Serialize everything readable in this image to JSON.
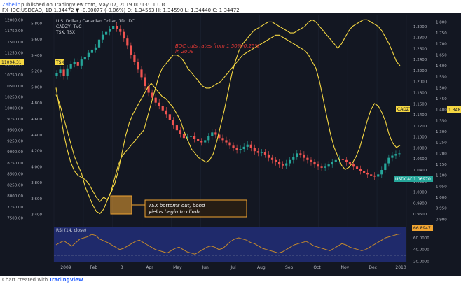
{
  "header": {
    "author": "Zabelin1",
    "published": "published on TradingView.com, May 07, 2019 00:13:11 UTC",
    "symbol_line": {
      "symbol": "FX_IDC:USDCAD, 1D",
      "values": "1.34472 ▼ -0.00077 (-0.06%) O: 1.34553 H: 1.34590 L: 1.34440 C: 1.34472"
    }
  },
  "legend": {
    "line1": "U.S. Dollar / Canadian Dollar, 1D, IDC",
    "line2": "CADZY, TVC",
    "line3": "TSX, TSX"
  },
  "annotations": {
    "boc": "BOC cuts rates from 1.50%-0.25%\nin 2009",
    "tsx": "TSX bottoms out, bond\nyields begin to climb"
  },
  "rsi": {
    "label": "RSI (14, close)",
    "value_badge": "66.8947",
    "levels": [
      "60.0000",
      "40.0000",
      "20.0000"
    ]
  },
  "badges": {
    "tsx_left": "11094.31",
    "tsx_tag": "TSX",
    "cadzy_tag": "CADZY",
    "cadzy_value": "1.348",
    "usdcad_tag": "USDCAD",
    "usdcad_value": "1.06970"
  },
  "footer": {
    "left": "Chart created with",
    "brand": "TradingView"
  },
  "colors": {
    "background": "#131722",
    "yellow": "#f5d742",
    "candle_up": "#26a69a",
    "candle_down": "#ef5350",
    "red_text": "#e53935",
    "rsi_band": "#1f2a6b",
    "rsi_line": "#c68a2b",
    "orange": "#f0a431"
  },
  "chart_data": {
    "type": "line",
    "x_tick_labels": [
      "2009",
      "Feb",
      "3",
      "Apr",
      "May",
      "Jun",
      "Jul",
      "Aug",
      "Sep",
      "Oct",
      "Nov",
      "Dec",
      "2010"
    ],
    "axes": {
      "tsx_left": {
        "range": [
          7400,
          12100
        ],
        "ticks": [
          "12000.00",
          "11750.00",
          "11500.00",
          "11250.00",
          "11000.00",
          "10750.00",
          "10500.00",
          "10250.00",
          "10000.00",
          "9750.00",
          "9500.00",
          "9250.00",
          "9000.00",
          "8750.00",
          "8500.00",
          "8250.00",
          "8000.00",
          "7750.00",
          "7500.00"
        ]
      },
      "cadzy_left2": {
        "range": [
          3.3,
          5.9
        ],
        "ticks": [
          "5.800",
          "5.600",
          "5.400",
          "5.200",
          "5.000",
          "4.800",
          "4.600",
          "4.400",
          "4.200",
          "4.000",
          "3.800",
          "3.600",
          "3.400"
        ]
      },
      "usdcad_right": {
        "range": [
          0.945,
          1.32
        ],
        "ticks": [
          "1.3000",
          "1.2800",
          "1.2600",
          "1.2400",
          "1.2200",
          "1.2000",
          "1.1800",
          "1.1600",
          "1.1400",
          "1.1200",
          "1.1000",
          "1.0800",
          "1.0600",
          "1.0400",
          "1.0200",
          "1.0000",
          "0.9800",
          "0.9600"
        ]
      },
      "cadzy_right2": {
        "range": [
          0.885,
          1.83
        ],
        "ticks": [
          "1.800",
          "1.750",
          "1.700",
          "1.650",
          "1.600",
          "1.550",
          "1.500",
          "1.450",
          "1.400",
          "1.350",
          "1.300",
          "1.250",
          "1.200",
          "1.150",
          "1.100",
          "1.050",
          "1.000",
          "0.950",
          "0.900"
        ]
      }
    },
    "series": [
      {
        "name": "CADZY, TVC",
        "axis": "cadzy_right2",
        "color": "yellow",
        "y": [
          1.5,
          1.4,
          1.3,
          1.22,
          1.16,
          1.12,
          1.1,
          1.09,
          1.08,
          1.06,
          1.03,
          1.0,
          0.98,
          1.0,
          0.99,
          1.02,
          1.06,
          1.12,
          1.2,
          1.28,
          1.34,
          1.38,
          1.41,
          1.44,
          1.47,
          1.5,
          1.52,
          1.5,
          1.48,
          1.46,
          1.45,
          1.43,
          1.41,
          1.38,
          1.35,
          1.3,
          1.26,
          1.22,
          1.2,
          1.18,
          1.17,
          1.16,
          1.17,
          1.2,
          1.26,
          1.33,
          1.4,
          1.48,
          1.56,
          1.62,
          1.67,
          1.7,
          1.72,
          1.74,
          1.76,
          1.77,
          1.78,
          1.79,
          1.8,
          1.8,
          1.79,
          1.78,
          1.77,
          1.76,
          1.75,
          1.75,
          1.76,
          1.77,
          1.78,
          1.8,
          1.81,
          1.8,
          1.78,
          1.76,
          1.74,
          1.72,
          1.7,
          1.68,
          1.7,
          1.73,
          1.76,
          1.78,
          1.79,
          1.8,
          1.81,
          1.81,
          1.8,
          1.79,
          1.78,
          1.76,
          1.73,
          1.7,
          1.66,
          1.62,
          1.6
        ]
      },
      {
        "name": "TSX, TSX",
        "axis": "tsx_left",
        "color": "yellow",
        "y": [
          10300,
          10100,
          9800,
          9500,
          9200,
          8900,
          8700,
          8500,
          8200,
          8000,
          7800,
          7650,
          7600,
          7700,
          7900,
          8100,
          8400,
          8700,
          8900,
          9000,
          9100,
          9200,
          9300,
          9400,
          9500,
          9800,
          10100,
          10400,
          10700,
          10900,
          11000,
          11100,
          11200,
          11200,
          11150,
          11050,
          10900,
          10800,
          10700,
          10600,
          10500,
          10450,
          10450,
          10500,
          10550,
          10600,
          10700,
          10800,
          10900,
          11000,
          11100,
          11200,
          11250,
          11300,
          11350,
          11400,
          11450,
          11500,
          11550,
          11600,
          11650,
          11650,
          11600,
          11550,
          11500,
          11450,
          11400,
          11350,
          11300,
          11200,
          11050,
          10900,
          10600,
          10200,
          9800,
          9400,
          9100,
          8900,
          8700,
          8600,
          8650,
          8750,
          8900,
          9100,
          9400,
          9700,
          9950,
          10100,
          10050,
          9900,
          9700,
          9400,
          9200,
          9100,
          9150
        ]
      },
      {
        "name": "U.S. Dollar / Canadian Dollar, 1D, IDC",
        "axis": "usdcad_right",
        "color": "candles",
        "y": [
          1.215,
          1.222,
          1.21,
          1.224,
          1.232,
          1.236,
          1.229,
          1.24,
          1.245,
          1.252,
          1.258,
          1.262,
          1.276,
          1.285,
          1.29,
          1.295,
          1.301,
          1.296,
          1.29,
          1.278,
          1.265,
          1.248,
          1.236,
          1.222,
          1.208,
          1.192,
          1.18,
          1.171,
          1.162,
          1.156,
          1.148,
          1.141,
          1.13,
          1.121,
          1.112,
          1.105,
          1.098,
          1.1,
          1.102,
          1.096,
          1.092,
          1.09,
          1.094,
          1.101,
          1.108,
          1.104,
          1.098,
          1.094,
          1.09,
          1.084,
          1.08,
          1.076,
          1.078,
          1.082,
          1.086,
          1.08,
          1.074,
          1.071,
          1.072,
          1.068,
          1.062,
          1.058,
          1.054,
          1.05,
          1.048,
          1.052,
          1.058,
          1.064,
          1.07,
          1.068,
          1.062,
          1.058,
          1.054,
          1.05,
          1.046,
          1.044,
          1.046,
          1.05,
          1.054,
          1.058,
          1.06,
          1.058,
          1.054,
          1.05,
          1.046,
          1.042,
          1.038,
          1.035,
          1.032,
          1.03,
          1.028,
          1.032,
          1.04,
          1.052,
          1.062,
          1.066,
          1.069,
          1.07
        ]
      },
      {
        "name": "RSI (14, close)",
        "axis": "rsi",
        "color": "rsi_line",
        "range": [
          18,
          78
        ],
        "y": [
          48,
          52,
          55,
          50,
          46,
          52,
          58,
          60,
          62,
          66,
          64,
          58,
          55,
          52,
          48,
          44,
          40,
          42,
          46,
          50,
          54,
          56,
          52,
          48,
          44,
          40,
          38,
          36,
          34,
          38,
          42,
          44,
          40,
          36,
          34,
          32,
          36,
          40,
          44,
          46,
          44,
          40,
          42,
          48,
          54,
          58,
          60,
          58,
          56,
          52,
          50,
          46,
          42,
          40,
          38,
          36,
          34,
          36,
          40,
          44,
          48,
          50,
          52,
          54,
          50,
          46,
          44,
          42,
          40,
          38,
          42,
          46,
          50,
          48,
          44,
          42,
          40,
          38,
          40,
          44,
          48,
          52,
          56,
          60,
          62,
          64,
          66,
          67
        ]
      }
    ]
  }
}
